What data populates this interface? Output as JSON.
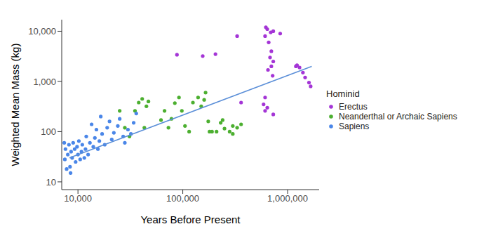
{
  "chart_data": {
    "type": "scatter",
    "log": true,
    "grid": false,
    "legend": "right",
    "marker": "circle",
    "legend_title": "Hominid",
    "x_label": "Years Before Present",
    "y_label": "Weighted Mean Mass (kg)",
    "xlim": [
      2000000,
      7000
    ],
    "ylim": [
      7,
      17000
    ],
    "xticks": [
      {
        "value": 1000000,
        "label": "1,000,000"
      },
      {
        "value": 100000,
        "label": "100,000"
      },
      {
        "value": 10000,
        "label": "10,000"
      }
    ],
    "yticks": [
      10,
      100,
      {
        "value": 1000,
        "label": "1,000"
      },
      {
        "value": 10000,
        "label": "10,000"
      }
    ],
    "series": [
      {
        "name": "Erectus",
        "color": "#a435d6",
        "x": [
          1660000,
          1600000,
          1470000,
          1400000,
          1300000,
          1230000,
          1200000,
          730000,
          640000,
          610000,
          660000,
          700000,
          680000,
          730000,
          700000,
          650000,
          720000,
          610000,
          590000,
          640000,
          610000,
          730000,
          850000,
          330000,
          360000,
          205000,
          155000,
          88000,
          620000,
          690000
        ],
        "values": [
          800,
          950,
          1200,
          1500,
          1900,
          2100,
          2000,
          10000,
          11000,
          8000,
          6000,
          4000,
          3000,
          2500,
          2000,
          1700,
          1300,
          480,
          350,
          300,
          260,
          220,
          9000,
          8000,
          380,
          3500,
          3200,
          3400,
          12000,
          9500
        ]
      },
      {
        "name": "Neanderthal or Archaic Sapiens",
        "color": "#4caf30",
        "x": [
          360000,
          330000,
          300000,
          280000,
          250000,
          230000,
          210000,
          190000,
          180000,
          175000,
          160000,
          150000,
          140000,
          165000,
          125000,
          115000,
          105000,
          98000,
          92000,
          84000,
          78000,
          73000,
          67000,
          62000,
          47000,
          45000,
          41000,
          38000,
          35000,
          31000,
          43000,
          28000,
          25000,
          300000,
          240000
        ],
        "values": [
          140,
          120,
          130,
          100,
          115,
          150,
          100,
          100,
          100,
          160,
          430,
          320,
          480,
          600,
          380,
          100,
          130,
          260,
          480,
          370,
          180,
          120,
          260,
          170,
          400,
          320,
          450,
          380,
          260,
          80,
          120,
          120,
          260,
          90,
          170
        ]
      },
      {
        "name": "Sapiens",
        "color": "#4a86e8",
        "x": [
          36000,
          34000,
          32000,
          30000,
          28000,
          27000,
          25000,
          24000,
          22000,
          21000,
          20000,
          19000,
          18000,
          17000,
          16500,
          16000,
          15500,
          15000,
          14500,
          14000,
          13500,
          13000,
          12500,
          12000,
          11800,
          11500,
          11000,
          10800,
          10500,
          10200,
          10000,
          9800,
          9500,
          9300,
          9000,
          8800,
          8600,
          8400,
          8200,
          8000,
          7800,
          7600,
          7500,
          7400,
          8500
        ],
        "values": [
          230,
          150,
          90,
          110,
          60,
          80,
          180,
          130,
          95,
          70,
          160,
          120,
          55,
          90,
          200,
          65,
          45,
          110,
          75,
          50,
          140,
          60,
          35,
          80,
          45,
          30,
          55,
          40,
          28,
          65,
          35,
          50,
          25,
          45,
          60,
          30,
          40,
          20,
          55,
          35,
          18,
          45,
          28,
          60,
          15
        ]
      }
    ],
    "trend_line": {
      "color": "#5b8fd8",
      "line_style": "solid",
      "x": [
        1700000,
        8300
      ],
      "values": [
        2000,
        30
      ]
    }
  }
}
